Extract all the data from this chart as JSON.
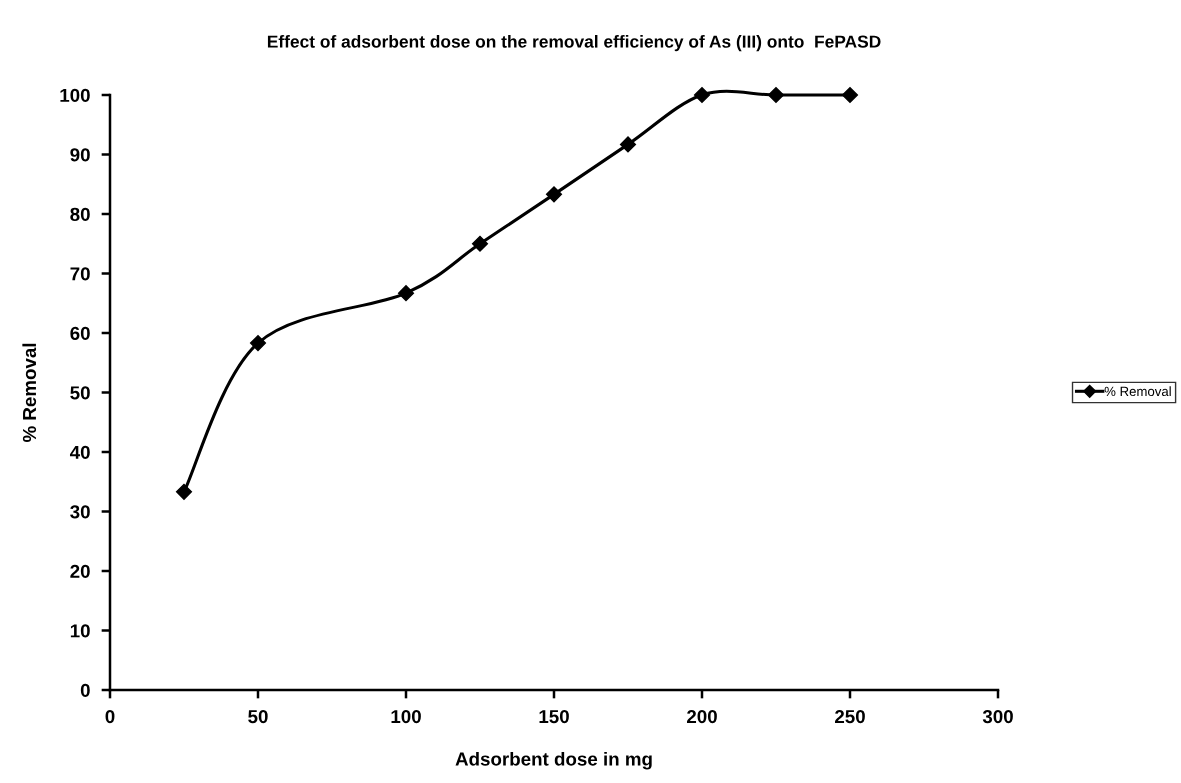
{
  "chart_data": {
    "type": "line",
    "title": "Effect of adsorbent dose on the removal efficiency of As (III) onto  FePASD",
    "xlabel": "Adsorbent dose in mg",
    "ylabel": "% Removal",
    "x": [
      25,
      50,
      100,
      125,
      150,
      175,
      200,
      225,
      250
    ],
    "series": [
      {
        "name": "% Removal",
        "color": "#000000",
        "values": [
          33.3,
          58.3,
          66.7,
          75,
          83.3,
          91.7,
          100,
          100,
          100
        ]
      }
    ],
    "xlim": [
      0,
      300
    ],
    "xticks": [
      0,
      50,
      100,
      150,
      200,
      250,
      300
    ],
    "ylim": [
      0,
      100
    ],
    "yticks": [
      0,
      10,
      20,
      30,
      40,
      50,
      60,
      70,
      80,
      90,
      100
    ],
    "grid": false,
    "legend": "right",
    "marker": "diamond",
    "line_style": "solid"
  }
}
